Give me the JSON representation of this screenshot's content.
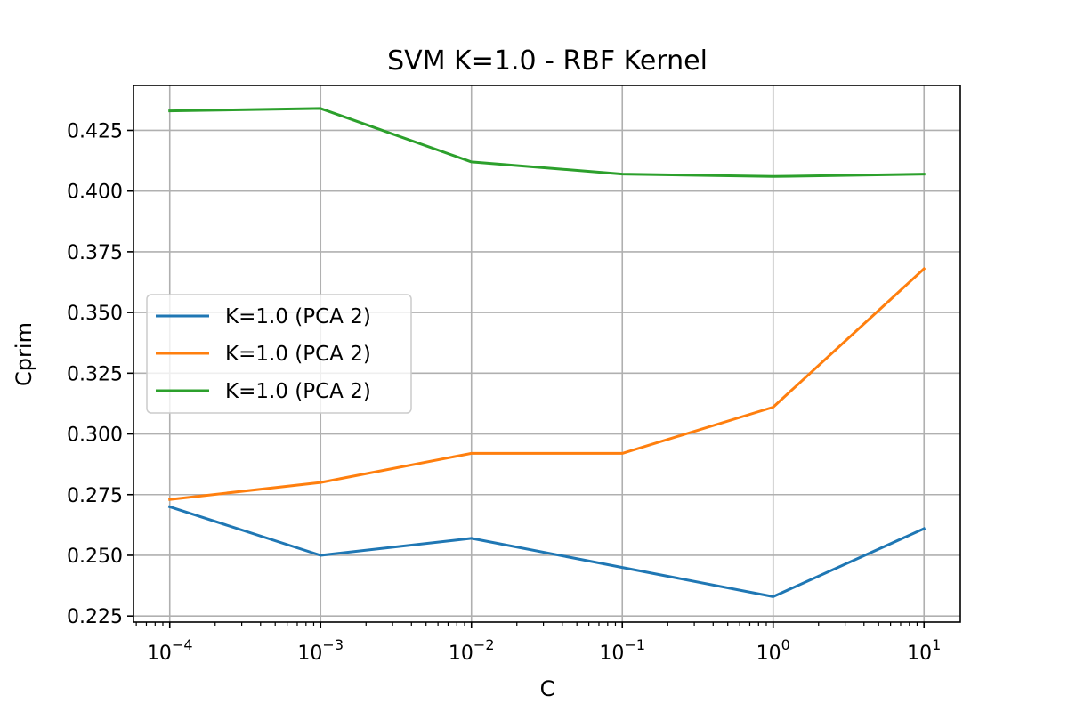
{
  "chart_data": {
    "type": "line",
    "title": "SVM K=1.0 - RBF Kernel",
    "xlabel": "C",
    "ylabel": "Cprim",
    "xscale": "log",
    "x": [
      0.0001,
      0.001,
      0.01,
      0.1,
      1,
      10
    ],
    "xlim": [
      5.75e-05,
      17.4
    ],
    "ylim": [
      0.2225,
      0.4435
    ],
    "x_ticks": [
      {
        "value": 0.0001,
        "base": "10",
        "exp": "−4"
      },
      {
        "value": 0.001,
        "base": "10",
        "exp": "−3"
      },
      {
        "value": 0.01,
        "base": "10",
        "exp": "−2"
      },
      {
        "value": 0.1,
        "base": "10",
        "exp": "−1"
      },
      {
        "value": 1,
        "base": "10",
        "exp": "0"
      },
      {
        "value": 10,
        "base": "10",
        "exp": "1"
      }
    ],
    "y_ticks": [
      {
        "value": 0.225,
        "label": "0.225"
      },
      {
        "value": 0.25,
        "label": "0.250"
      },
      {
        "value": 0.275,
        "label": "0.275"
      },
      {
        "value": 0.3,
        "label": "0.300"
      },
      {
        "value": 0.325,
        "label": "0.325"
      },
      {
        "value": 0.35,
        "label": "0.350"
      },
      {
        "value": 0.375,
        "label": "0.375"
      },
      {
        "value": 0.4,
        "label": "0.400"
      },
      {
        "value": 0.425,
        "label": "0.425"
      }
    ],
    "grid": true,
    "legend_position": "center-left",
    "series": [
      {
        "name": "K=1.0 (PCA 2)",
        "color": "#1f77b4",
        "values": [
          0.27,
          0.25,
          0.257,
          0.245,
          0.233,
          0.261
        ]
      },
      {
        "name": "K=1.0 (PCA 2)",
        "color": "#ff7f0e",
        "values": [
          0.273,
          0.28,
          0.292,
          0.292,
          0.311,
          0.368
        ]
      },
      {
        "name": "K=1.0 (PCA 2)",
        "color": "#2ca02c",
        "values": [
          0.433,
          0.434,
          0.412,
          0.407,
          0.406,
          0.407
        ]
      }
    ]
  }
}
